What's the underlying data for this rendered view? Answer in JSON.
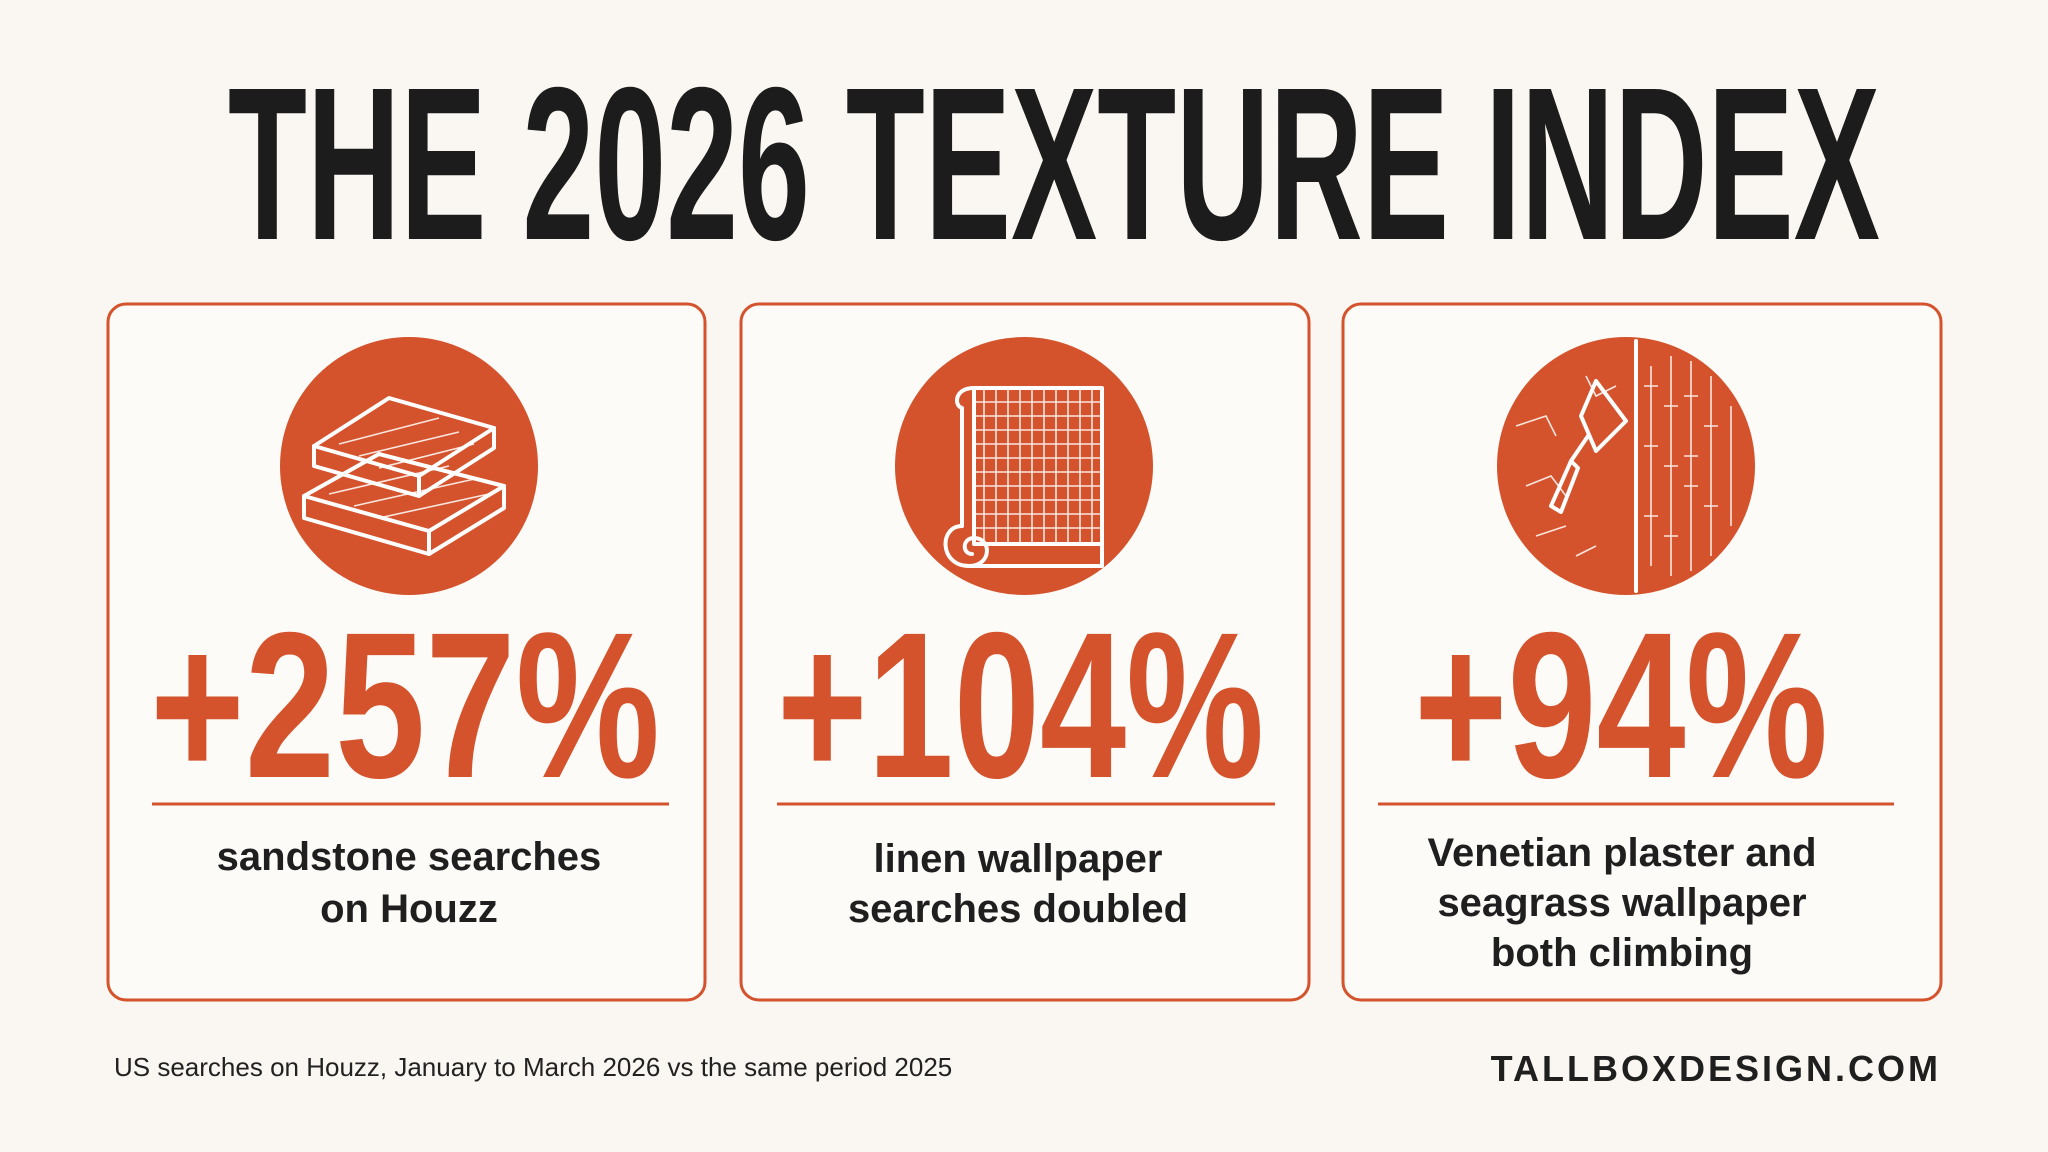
{
  "header": {
    "title": "THE 2026 TEXTURE INDEX"
  },
  "cards": [
    {
      "stat": "+257%",
      "description_lines": [
        "sandstone searches",
        "on Houzz"
      ]
    },
    {
      "stat": "+104%",
      "description_lines": [
        "linen wallpaper",
        "searches doubled"
      ]
    },
    {
      "stat": "+94%",
      "description_lines": [
        "Venetian plaster and",
        "seagrass wallpaper",
        "both climbing"
      ]
    }
  ],
  "footer": {
    "note": "US searches on Houzz, January to March 2026 vs the same period 2025",
    "brand": "TALLBOXDESIGN.COM"
  }
}
